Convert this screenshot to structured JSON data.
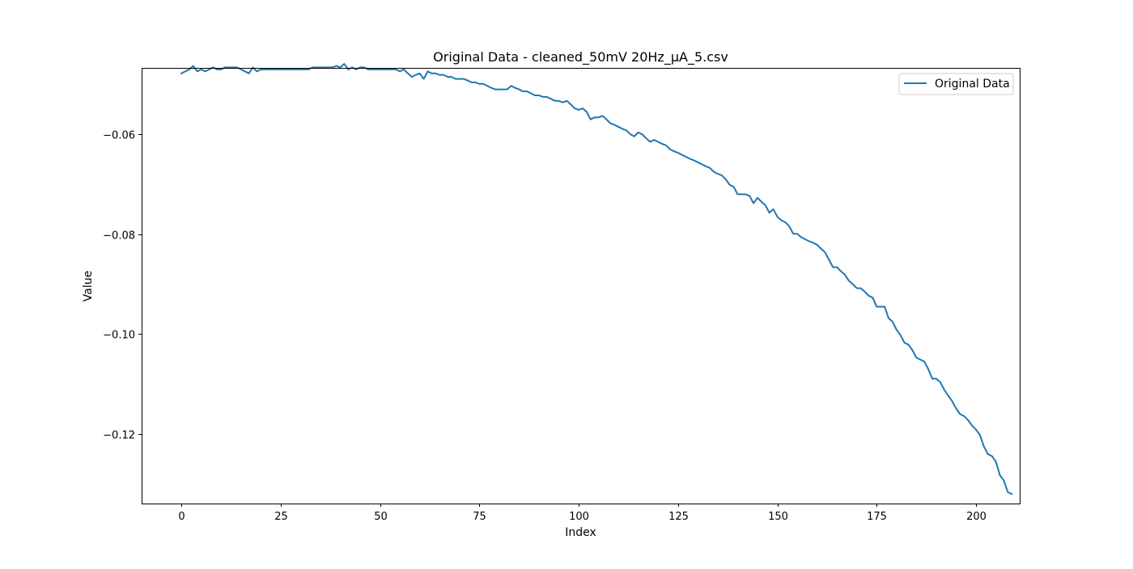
{
  "chart_data": {
    "type": "line",
    "title": "Original Data - cleaned_50mV 20Hz_μA_5.csv",
    "xlabel": "Index",
    "ylabel": "Value",
    "xlim": [
      -10,
      211
    ],
    "ylim": [
      -0.1339,
      -0.0467
    ],
    "xticks": [
      0,
      25,
      50,
      75,
      100,
      125,
      150,
      175,
      200
    ],
    "xtick_labels": [
      "0",
      "25",
      "50",
      "75",
      "100",
      "125",
      "150",
      "175",
      "200"
    ],
    "yticks": [
      -0.06,
      -0.08,
      -0.1,
      -0.12
    ],
    "ytick_labels": [
      "−0.06",
      "−0.08",
      "−0.10",
      "−0.12"
    ],
    "grid": false,
    "legend_position": "upper right",
    "series": [
      {
        "name": "Original Data",
        "color": "#1f77b4",
        "x_start": 0,
        "x_step": 1,
        "y": [
          -0.0478,
          -0.0474,
          -0.047,
          -0.0463,
          -0.0474,
          -0.047,
          -0.0474,
          -0.047,
          -0.0466,
          -0.047,
          -0.047,
          -0.0466,
          -0.0466,
          -0.0466,
          -0.0466,
          -0.047,
          -0.0474,
          -0.0478,
          -0.0466,
          -0.0474,
          -0.047,
          -0.047,
          -0.047,
          -0.047,
          -0.047,
          -0.047,
          -0.047,
          -0.047,
          -0.047,
          -0.047,
          -0.047,
          -0.047,
          -0.047,
          -0.0466,
          -0.0466,
          -0.0466,
          -0.0466,
          -0.0466,
          -0.0466,
          -0.0463,
          -0.0466,
          -0.0459,
          -0.047,
          -0.0466,
          -0.047,
          -0.0466,
          -0.0466,
          -0.047,
          -0.047,
          -0.047,
          -0.047,
          -0.047,
          -0.047,
          -0.047,
          -0.047,
          -0.0474,
          -0.047,
          -0.0478,
          -0.0485,
          -0.0481,
          -0.0478,
          -0.0489,
          -0.0474,
          -0.0478,
          -0.0478,
          -0.0481,
          -0.0481,
          -0.0485,
          -0.0485,
          -0.0489,
          -0.0489,
          -0.0489,
          -0.0492,
          -0.0496,
          -0.0496,
          -0.0499,
          -0.0499,
          -0.0503,
          -0.0507,
          -0.051,
          -0.051,
          -0.051,
          -0.051,
          -0.0503,
          -0.0507,
          -0.051,
          -0.0514,
          -0.0514,
          -0.0518,
          -0.0522,
          -0.0522,
          -0.0525,
          -0.0525,
          -0.0529,
          -0.0533,
          -0.0533,
          -0.0536,
          -0.0533,
          -0.054,
          -0.0548,
          -0.0551,
          -0.0548,
          -0.0555,
          -0.057,
          -0.0566,
          -0.0566,
          -0.0563,
          -0.057,
          -0.0578,
          -0.0581,
          -0.0585,
          -0.0589,
          -0.0592,
          -0.06,
          -0.0604,
          -0.0596,
          -0.06,
          -0.0608,
          -0.0615,
          -0.0611,
          -0.0615,
          -0.0619,
          -0.0622,
          -0.063,
          -0.0634,
          -0.0637,
          -0.0641,
          -0.0645,
          -0.0649,
          -0.0652,
          -0.0656,
          -0.066,
          -0.0664,
          -0.0667,
          -0.0675,
          -0.0679,
          -0.0682,
          -0.069,
          -0.0701,
          -0.0705,
          -0.072,
          -0.072,
          -0.072,
          -0.0723,
          -0.0738,
          -0.0727,
          -0.0735,
          -0.0742,
          -0.0757,
          -0.075,
          -0.0765,
          -0.0772,
          -0.0776,
          -0.0784,
          -0.0799,
          -0.0799,
          -0.0806,
          -0.081,
          -0.0814,
          -0.0817,
          -0.0821,
          -0.0829,
          -0.0836,
          -0.0851,
          -0.0866,
          -0.0866,
          -0.0874,
          -0.0881,
          -0.0893,
          -0.09,
          -0.0908,
          -0.0908,
          -0.0915,
          -0.0923,
          -0.0927,
          -0.0945,
          -0.0945,
          -0.0945,
          -0.0968,
          -0.0975,
          -0.0991,
          -0.1002,
          -0.1017,
          -0.1021,
          -0.1032,
          -0.1047,
          -0.1051,
          -0.1055,
          -0.107,
          -0.1089,
          -0.1089,
          -0.1096,
          -0.1111,
          -0.1123,
          -0.1134,
          -0.1149,
          -0.116,
          -0.1164,
          -0.1172,
          -0.1183,
          -0.1191,
          -0.1202,
          -0.1225,
          -0.124,
          -0.1244,
          -0.1255,
          -0.1282,
          -0.1293,
          -0.1316,
          -0.132
        ]
      }
    ]
  }
}
